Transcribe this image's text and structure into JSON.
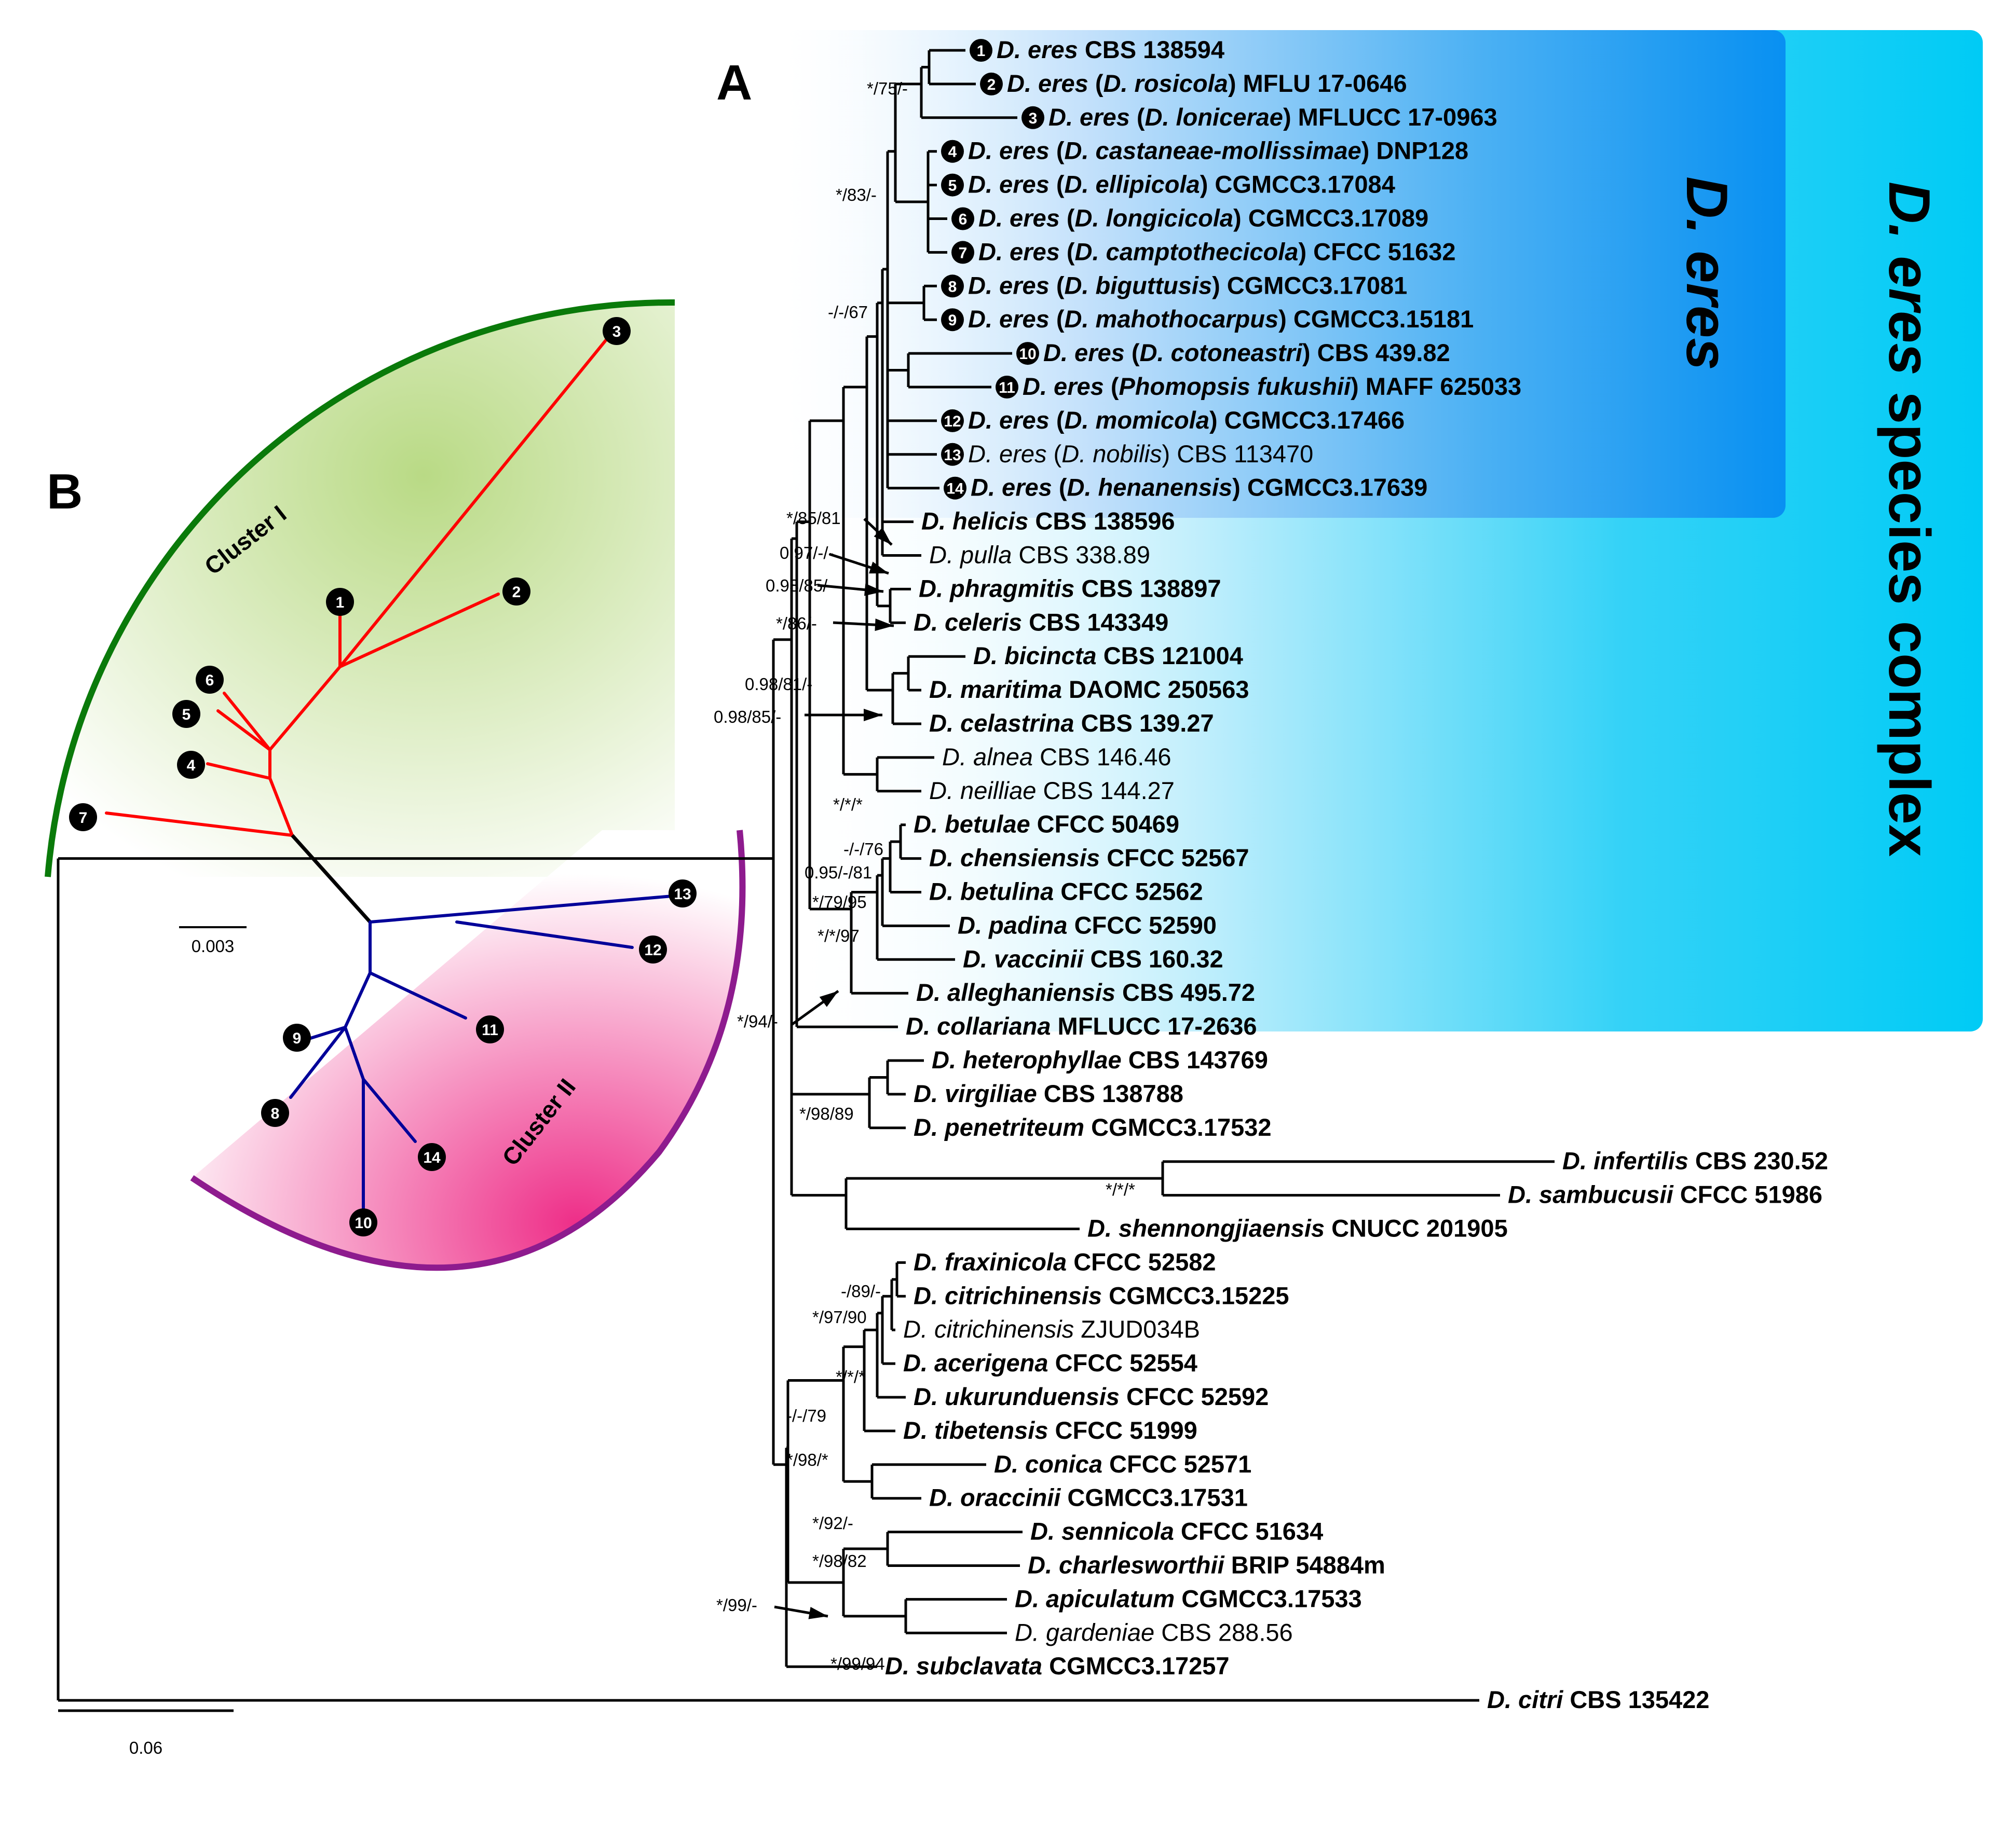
{
  "figure": {
    "panel_a_label": "A",
    "panel_b_label": "B",
    "scale_bar_a": "0.06",
    "scale_bar_b": "0.003",
    "colors": {
      "species_complex_band": "#00ccf5",
      "d_eres_band": "#0893f2",
      "cluster1_branch": "#ff0000",
      "cluster2_branch": "#000099",
      "cluster1_arc": "#0a7a0a",
      "cluster2_arc": "#8e1b8e"
    }
  },
  "bands": {
    "complex": {
      "italic": "D. eres",
      "rest": " species complex"
    },
    "eres": "D. eres"
  },
  "taxa": [
    {
      "num": "1",
      "genus": "D. eres",
      "syn": "",
      "strain": "CBS 138594",
      "bold": true
    },
    {
      "num": "2",
      "genus": "D. eres",
      "syn": "D. rosicola",
      "strain": "MFLU 17-0646",
      "bold": true
    },
    {
      "num": "3",
      "genus": "D. eres",
      "syn": "D. lonicerae",
      "strain": "MFLUCC 17-0963",
      "bold": true
    },
    {
      "num": "4",
      "genus": "D. eres",
      "syn": "D. castaneae-mollissimae",
      "strain": "DNP128",
      "bold": true
    },
    {
      "num": "5",
      "genus": "D. eres",
      "syn": "D. ellipicola",
      "strain": "CGMCC3.17084",
      "bold": true
    },
    {
      "num": "6",
      "genus": "D. eres",
      "syn": "D. longicicola",
      "strain": "CGMCC3.17089",
      "bold": true
    },
    {
      "num": "7",
      "genus": "D. eres",
      "syn": "D. camptothecicola",
      "strain": "CFCC 51632",
      "bold": true
    },
    {
      "num": "8",
      "genus": "D. eres",
      "syn": "D. biguttusis",
      "strain": "CGMCC3.17081",
      "bold": true
    },
    {
      "num": "9",
      "genus": "D. eres",
      "syn": "D. mahothocarpus",
      "strain": "CGMCC3.15181",
      "bold": true
    },
    {
      "num": "10",
      "genus": "D. eres",
      "syn": "D. cotoneastri",
      "strain": "CBS 439.82",
      "bold": true
    },
    {
      "num": "11",
      "genus": "D. eres",
      "syn": "Phomopsis fukushii",
      "strain": "MAFF 625033",
      "bold": true
    },
    {
      "num": "12",
      "genus": "D. eres",
      "syn": "D. momicola",
      "strain": "CGMCC3.17466",
      "bold": true
    },
    {
      "num": "13",
      "genus": "D. eres",
      "syn": "D. nobilis",
      "strain": "CBS 113470",
      "bold": false
    },
    {
      "num": "14",
      "genus": "D. eres",
      "syn": "D. henanensis",
      "strain": "CGMCC3.17639",
      "bold": true
    },
    {
      "num": "",
      "genus": "D. helicis",
      "syn": "",
      "strain": "CBS 138596",
      "bold": true
    },
    {
      "num": "",
      "genus": "D. pulla",
      "syn": "",
      "strain": "CBS 338.89",
      "bold": false
    },
    {
      "num": "",
      "genus": "D. phragmitis",
      "syn": "",
      "strain": "CBS 138897",
      "bold": true
    },
    {
      "num": "",
      "genus": "D. celeris",
      "syn": "",
      "strain": "CBS 143349",
      "bold": true
    },
    {
      "num": "",
      "genus": "D. bicincta",
      "syn": "",
      "strain": "CBS 121004",
      "bold": true
    },
    {
      "num": "",
      "genus": "D. maritima",
      "syn": "",
      "strain": "DAOMC 250563",
      "bold": true
    },
    {
      "num": "",
      "genus": "D. celastrina",
      "syn": "",
      "strain": "CBS 139.27",
      "bold": true
    },
    {
      "num": "",
      "genus": "D. alnea",
      "syn": "",
      "strain": "CBS 146.46",
      "bold": false
    },
    {
      "num": "",
      "genus": "D. neilliae",
      "syn": "",
      "strain": "CBS 144.27",
      "bold": false
    },
    {
      "num": "",
      "genus": "D. betulae",
      "syn": "",
      "strain": "CFCC 50469",
      "bold": true
    },
    {
      "num": "",
      "genus": "D. chensiensis",
      "syn": "",
      "strain": "CFCC 52567",
      "bold": true
    },
    {
      "num": "",
      "genus": "D. betulina",
      "syn": "",
      "strain": "CFCC 52562",
      "bold": true
    },
    {
      "num": "",
      "genus": "D. padina",
      "syn": "",
      "strain": "CFCC 52590",
      "bold": true
    },
    {
      "num": "",
      "genus": "D. vaccinii",
      "syn": "",
      "strain": "CBS 160.32",
      "bold": true
    },
    {
      "num": "",
      "genus": "D. alleghaniensis",
      "syn": "",
      "strain": "CBS 495.72",
      "bold": true
    },
    {
      "num": "",
      "genus": "D. collariana",
      "syn": "",
      "strain": "MFLUCC 17-2636",
      "bold": true
    },
    {
      "num": "",
      "genus": "D. heterophyllae",
      "syn": "",
      "strain": "CBS 143769",
      "bold": true
    },
    {
      "num": "",
      "genus": "D. virgiliae",
      "syn": "",
      "strain": "CBS 138788",
      "bold": true
    },
    {
      "num": "",
      "genus": "D. penetriteum",
      "syn": "",
      "strain": "CGMCC3.17532",
      "bold": true
    },
    {
      "num": "",
      "genus": "D. infertilis",
      "syn": "",
      "strain": "CBS 230.52",
      "bold": true
    },
    {
      "num": "",
      "genus": "D. sambucusii",
      "syn": "",
      "strain": "CFCC 51986",
      "bold": true
    },
    {
      "num": "",
      "genus": "D. shennongjiaensis",
      "syn": "",
      "strain": "CNUCC 201905",
      "bold": true
    },
    {
      "num": "",
      "genus": "D. fraxinicola",
      "syn": "",
      "strain": "CFCC 52582",
      "bold": true
    },
    {
      "num": "",
      "genus": "D. citrichinensis",
      "syn": "",
      "strain": "CGMCC3.15225",
      "bold": true
    },
    {
      "num": "",
      "genus": "D. citrichinensis",
      "syn": "",
      "strain": "ZJUD034B",
      "bold": false
    },
    {
      "num": "",
      "genus": "D. acerigena",
      "syn": "",
      "strain": "CFCC 52554",
      "bold": true
    },
    {
      "num": "",
      "genus": "D. ukurunduensis",
      "syn": "",
      "strain": "CFCC 52592",
      "bold": true
    },
    {
      "num": "",
      "genus": "D. tibetensis",
      "syn": "",
      "strain": "CFCC 51999",
      "bold": true
    },
    {
      "num": "",
      "genus": "D. conica",
      "syn": "",
      "strain": "CFCC 52571",
      "bold": true
    },
    {
      "num": "",
      "genus": "D. oraccinii",
      "syn": "",
      "strain": "CGMCC3.17531",
      "bold": true
    },
    {
      "num": "",
      "genus": "D. sennicola",
      "syn": "",
      "strain": "CFCC 51634",
      "bold": true
    },
    {
      "num": "",
      "genus": "D. charlesworthii",
      "syn": "",
      "strain": "BRIP 54884m",
      "bold": true
    },
    {
      "num": "",
      "genus": "D. apiculatum",
      "syn": "",
      "strain": "CGMCC3.17533",
      "bold": true
    },
    {
      "num": "",
      "genus": "D. gardeniae",
      "syn": "",
      "strain": "CBS 288.56",
      "bold": false
    },
    {
      "num": "",
      "genus": "D. subclavata",
      "syn": "",
      "strain": "CGMCC3.17257",
      "bold": true
    },
    {
      "num": "",
      "genus": "D. citri",
      "syn": "",
      "strain": "CBS 135422",
      "bold": true
    }
  ],
  "supports": [
    "*/75/-",
    "*/83/-",
    "-/-/67",
    "*/85/81",
    "0.97/-/-",
    "0.98/85/-",
    "*/86/-",
    "0.98/81/-",
    "0.98/85/-",
    "*/*/*",
    "-/-/76",
    "0.95/-/81",
    "*/79/95",
    "*/*/97",
    "*/94/-",
    "*/98/89",
    "*/*/*",
    "-/89/-",
    "*/97/90",
    "*/*/*",
    "-/-/79",
    "*/98/*",
    "*/92/-",
    "*/98/82",
    "*/99/-",
    "*/99/94"
  ],
  "panel_b": {
    "cluster1_label": "Cluster I",
    "cluster2_label": "Cluster II",
    "tips": [
      "1",
      "2",
      "3",
      "4",
      "5",
      "6",
      "7",
      "8",
      "9",
      "10",
      "11",
      "12",
      "13",
      "14"
    ]
  }
}
